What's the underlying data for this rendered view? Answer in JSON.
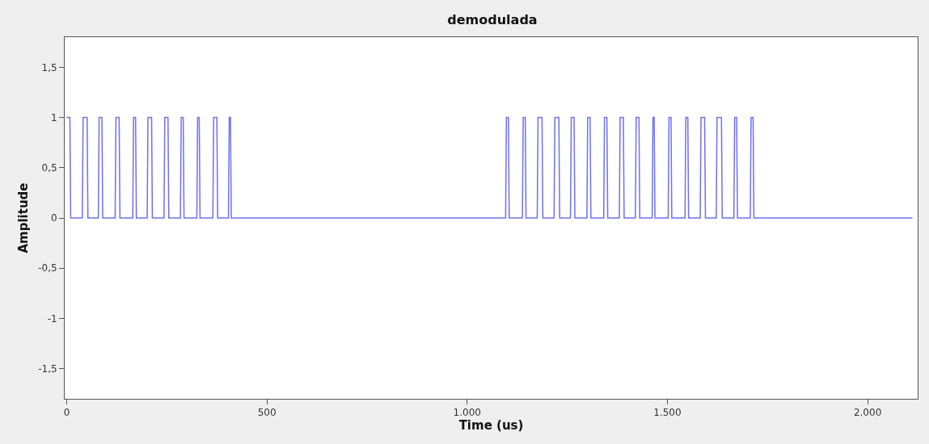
{
  "chart_data": {
    "type": "line",
    "title": "demodulada",
    "xlabel": "Time (us)",
    "ylabel": "Amplitude",
    "x": [
      0,
      8,
      10,
      39,
      41,
      51,
      53,
      79,
      81,
      88,
      90,
      121,
      123,
      131,
      133,
      165,
      167,
      172,
      174,
      201,
      203,
      212,
      214,
      243,
      245,
      253,
      255,
      284,
      286,
      291,
      293,
      325,
      327,
      331,
      333,
      365,
      367,
      375,
      377,
      404,
      406,
      409,
      411,
      1096,
      1098,
      1103,
      1105,
      1138,
      1140,
      1145,
      1147,
      1175,
      1177,
      1187,
      1189,
      1217,
      1219,
      1229,
      1231,
      1258,
      1260,
      1267,
      1269,
      1299,
      1301,
      1307,
      1309,
      1341,
      1343,
      1349,
      1351,
      1380,
      1382,
      1390,
      1392,
      1420,
      1422,
      1429,
      1431,
      1462,
      1464,
      1467,
      1469,
      1502,
      1504,
      1509,
      1511,
      1544,
      1546,
      1551,
      1553,
      1582,
      1584,
      1593,
      1595,
      1622,
      1624,
      1635,
      1637,
      1666,
      1668,
      1673,
      1675,
      1707,
      1709,
      1714,
      1716,
      2112
    ],
    "series": [
      {
        "color": "#7070f0",
        "values": [
          1,
          1,
          0,
          0,
          1,
          1,
          0,
          0,
          1,
          1,
          0,
          0,
          1,
          1,
          0,
          0,
          1,
          1,
          0,
          0,
          1,
          1,
          0,
          0,
          1,
          1,
          0,
          0,
          1,
          1,
          0,
          0,
          1,
          1,
          0,
          0,
          1,
          1,
          0,
          0,
          1,
          1,
          0,
          0,
          1,
          1,
          0,
          0,
          1,
          1,
          0,
          0,
          1,
          1,
          0,
          0,
          1,
          1,
          0,
          0,
          1,
          1,
          0,
          0,
          1,
          1,
          0,
          0,
          1,
          1,
          0,
          0,
          1,
          1,
          0,
          0,
          1,
          1,
          0,
          0,
          1,
          1,
          0,
          0,
          1,
          1,
          0,
          0,
          1,
          1,
          0,
          0,
          1,
          1,
          0,
          0,
          1,
          1,
          0,
          0,
          1,
          1,
          0,
          0,
          1,
          1,
          0,
          0
        ]
      }
    ],
    "xlim": [
      -5,
      2125
    ],
    "ylim": [
      -1.8,
      1.8
    ],
    "xticks": [
      0,
      500,
      {
        "value": 1000,
        "label": "1.000"
      },
      {
        "value": 1500,
        "label": "1.500"
      },
      {
        "value": 2000,
        "label": "2.000"
      }
    ],
    "yticks": [
      {
        "value": -1.5,
        "label": "-1,5"
      },
      -1,
      {
        "value": -0.5,
        "label": "-0,5"
      },
      0,
      {
        "value": 0.5,
        "label": "0,5"
      },
      1,
      {
        "value": 1.5,
        "label": "1,5"
      }
    ],
    "marker": "none",
    "line_style": "solid"
  }
}
